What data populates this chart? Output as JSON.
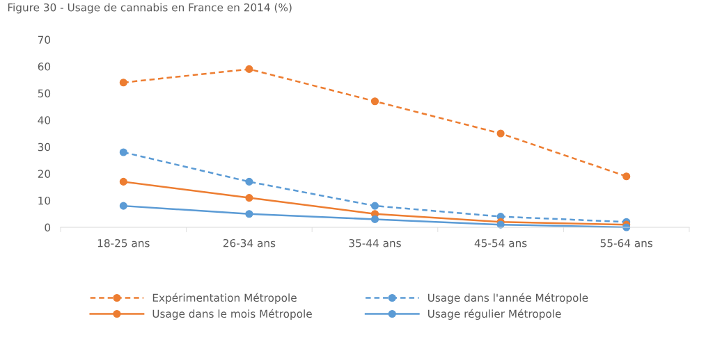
{
  "chart_data": {
    "type": "line",
    "title": "Figure 30 - Usage de cannabis en France en 2014 (%)",
    "categories": [
      "18-25 ans",
      "26-34 ans",
      "35-44 ans",
      "45-54 ans",
      "55-64 ans"
    ],
    "series": [
      {
        "name": "Expérimentation Métropole",
        "color": "#ed7d31",
        "line_style": "dashed",
        "values": [
          54,
          59,
          47,
          35,
          19
        ]
      },
      {
        "name": "Usage dans l'année Métropole",
        "color": "#5b9bd5",
        "line_style": "dashed",
        "values": [
          28,
          17,
          8,
          4,
          2
        ]
      },
      {
        "name": "Usage dans le mois Métropole",
        "color": "#ed7d31",
        "line_style": "solid",
        "values": [
          17,
          11,
          5,
          2,
          1
        ]
      },
      {
        "name": "Usage régulier Métropole",
        "color": "#5b9bd5",
        "line_style": "solid",
        "values": [
          8,
          5,
          3,
          1,
          0
        ]
      }
    ],
    "ylim": [
      0,
      70
    ],
    "yticks": [
      0,
      10,
      20,
      30,
      40,
      50,
      60,
      70
    ],
    "grid": false,
    "legend": "bottom",
    "marker": "circle"
  }
}
